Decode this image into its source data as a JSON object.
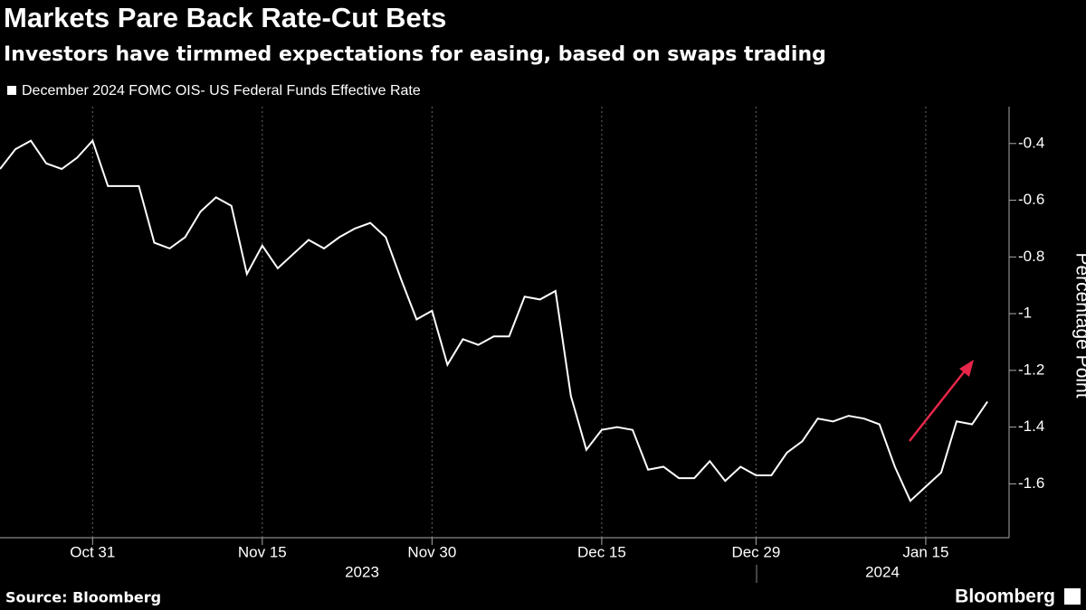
{
  "chart_data": {
    "type": "line",
    "title": "Markets Pare Back Rate-Cut Bets",
    "subtitle": "Investors have tirmmed expectations for easing, based on swaps trading",
    "y_axis_label": "Percentage Point",
    "source": "Source: Bloomberg",
    "brand": "Bloomberg",
    "year_labels": [
      "2023",
      "2024"
    ],
    "categories": [
      null,
      null,
      null,
      null,
      null,
      null,
      "Oct 31",
      null,
      null,
      null,
      null,
      null,
      null,
      null,
      null,
      null,
      null,
      "Nov 15",
      null,
      null,
      null,
      null,
      null,
      null,
      null,
      null,
      null,
      null,
      "Nov 30",
      null,
      null,
      null,
      null,
      null,
      null,
      null,
      null,
      null,
      null,
      "Dec 15",
      null,
      null,
      null,
      null,
      null,
      null,
      null,
      null,
      null,
      "Dec 29",
      null,
      null,
      null,
      null,
      null,
      null,
      null,
      null,
      null,
      null,
      "Jan 15",
      null,
      null,
      null,
      null
    ],
    "series": [
      {
        "name": "December 2024 FOMC OIS- US Federal Funds Effective Rate",
        "color": "#ffffff",
        "values": [
          -0.49,
          -0.42,
          -0.39,
          -0.47,
          -0.49,
          -0.45,
          -0.39,
          -0.55,
          -0.55,
          -0.55,
          -0.75,
          -0.77,
          -0.73,
          -0.64,
          -0.59,
          -0.62,
          -0.86,
          -0.76,
          -0.84,
          -0.79,
          -0.74,
          -0.77,
          -0.73,
          -0.7,
          -0.68,
          -0.73,
          -0.88,
          -1.02,
          -0.99,
          -1.18,
          -1.09,
          -1.11,
          -1.08,
          -1.08,
          -0.94,
          -0.95,
          -0.92,
          -1.29,
          -1.48,
          -1.41,
          -1.4,
          -1.41,
          -1.55,
          -1.54,
          -1.58,
          -1.58,
          -1.52,
          -1.59,
          -1.54,
          -1.57,
          -1.57,
          -1.49,
          -1.45,
          -1.37,
          -1.38,
          -1.36,
          -1.37,
          -1.39,
          -1.54,
          -1.66,
          -1.61,
          -1.56,
          -1.38,
          -1.39,
          -1.31
        ]
      }
    ],
    "ylim": [
      -1.79,
      -0.27
    ],
    "yticks": [
      -0.4,
      -0.6,
      -0.8,
      -1.0,
      -1.2,
      -1.4,
      -1.6
    ],
    "grid": "x",
    "annotation_color": "#e8264a"
  }
}
